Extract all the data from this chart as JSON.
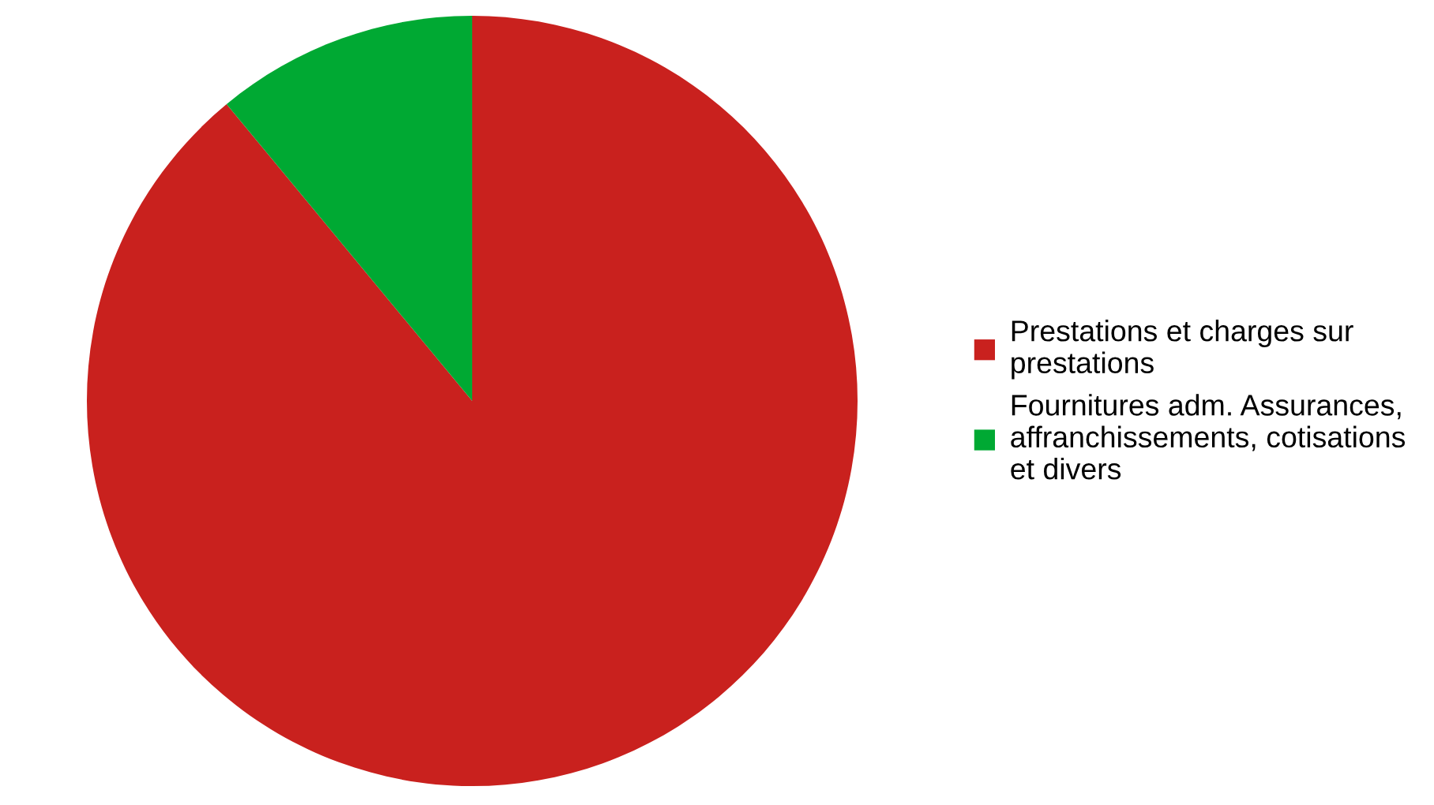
{
  "chart_data": {
    "type": "pie",
    "categories": [
      "Prestations et charges sur prestations",
      "Fournitures adm. Assurances, affranchissements, cotisations et divers"
    ],
    "values": [
      89,
      11
    ],
    "colors": [
      "#c9211e",
      "#00a933"
    ],
    "legend": "right"
  }
}
